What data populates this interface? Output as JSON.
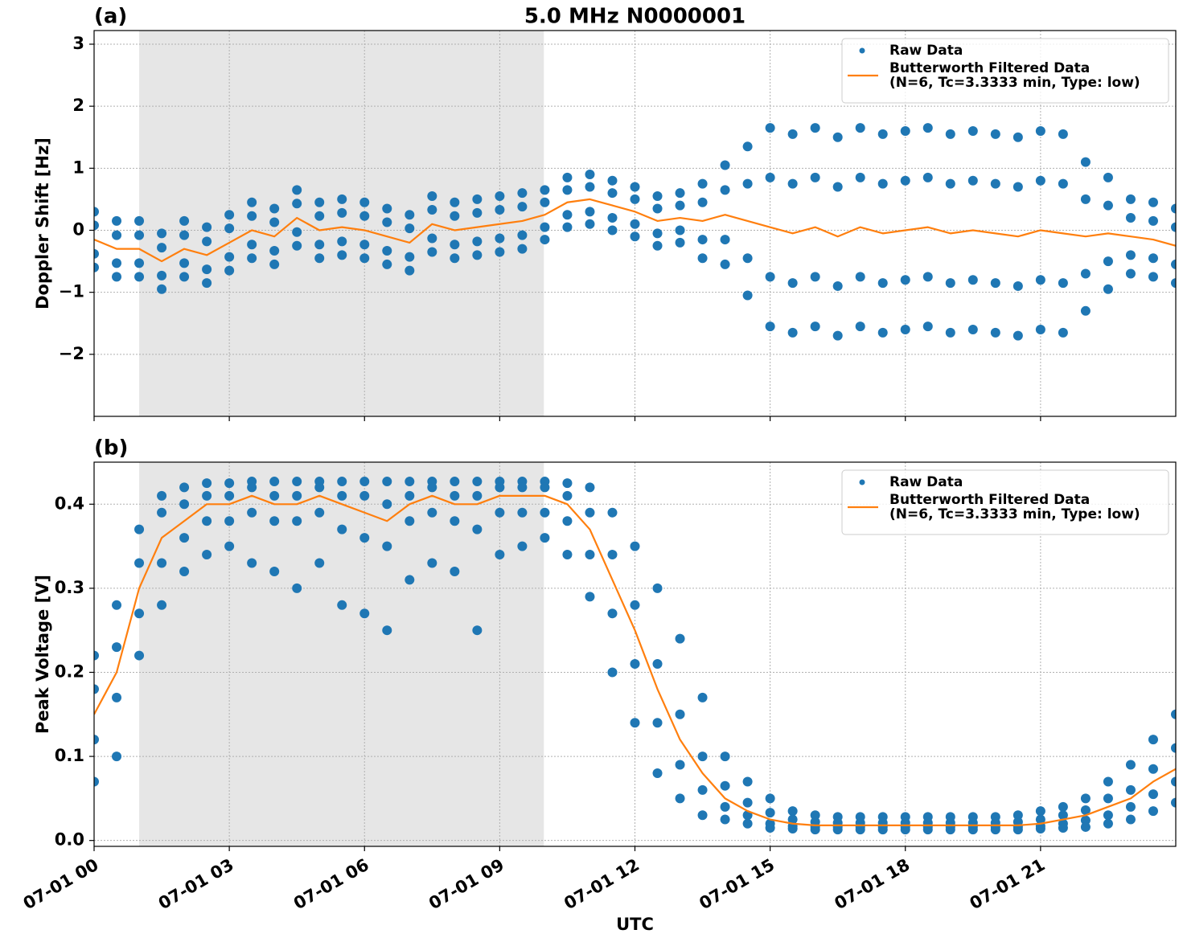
{
  "chart_data": [
    {
      "type": "scatter",
      "title": "5.0 MHz N0000001",
      "panel_label": "(a)",
      "ylabel": "Doppler Shift [Hz]",
      "xlim": [
        0,
        24
      ],
      "ylim": [
        -3,
        3.22
      ],
      "shaded_span": [
        1.0,
        9.98
      ],
      "grid": true,
      "legend": "upper right",
      "xticks": [
        0,
        3,
        6,
        9,
        12,
        15,
        18,
        21
      ],
      "yticks": [
        {
          "value": -2,
          "label": "−2"
        },
        {
          "value": -1,
          "label": "−1"
        },
        0,
        1,
        2,
        3
      ],
      "series": [
        {
          "name": "Raw Data",
          "type": "scatter",
          "color": "#1f77b4",
          "x": [
            0,
            0,
            0,
            0,
            0.5,
            0.5,
            0.5,
            0.5,
            1,
            1,
            1,
            1,
            1.5,
            1.5,
            1.5,
            1.5,
            2,
            2,
            2,
            2,
            2.5,
            2.5,
            2.5,
            2.5,
            3,
            3,
            3,
            3,
            3.5,
            3.5,
            3.5,
            3.5,
            4,
            4,
            4,
            4,
            4.5,
            4.5,
            4.5,
            4.5,
            5,
            5,
            5,
            5,
            5.5,
            5.5,
            5.5,
            5.5,
            6,
            6,
            6,
            6,
            6.5,
            6.5,
            6.5,
            6.5,
            7,
            7,
            7,
            7,
            7.5,
            7.5,
            7.5,
            7.5,
            8,
            8,
            8,
            8,
            8.5,
            8.5,
            8.5,
            8.5,
            9,
            9,
            9,
            9,
            9.5,
            9.5,
            9.5,
            9.5,
            10,
            10,
            10,
            10,
            10.5,
            10.5,
            10.5,
            10.5,
            11,
            11,
            11,
            11,
            11.5,
            11.5,
            11.5,
            11.5,
            12,
            12,
            12,
            12,
            12.5,
            12.5,
            12.5,
            12.5,
            13,
            13,
            13,
            13,
            13.5,
            13.5,
            13.5,
            13.5,
            14,
            14,
            14,
            14,
            14.5,
            14.5,
            14.5,
            14.5,
            15,
            15,
            15,
            15,
            15.5,
            15.5,
            15.5,
            15.5,
            16,
            16,
            16,
            16,
            16.5,
            16.5,
            16.5,
            16.5,
            17,
            17,
            17,
            17,
            17.5,
            17.5,
            17.5,
            17.5,
            18,
            18,
            18,
            18,
            18.5,
            18.5,
            18.5,
            18.5,
            19,
            19,
            19,
            19,
            19.5,
            19.5,
            19.5,
            19.5,
            20,
            20,
            20,
            20,
            20.5,
            20.5,
            20.5,
            20.5,
            21,
            21,
            21,
            21,
            21.5,
            21.5,
            21.5,
            21.5,
            22,
            22,
            22,
            22,
            22.5,
            22.5,
            22.5,
            22.5,
            23,
            23,
            23,
            23,
            23.5,
            23.5,
            23.5,
            23.5,
            24,
            24,
            24,
            24
          ],
          "values": [
            0.3,
            0.08,
            -0.38,
            -0.6,
            0.15,
            -0.08,
            -0.53,
            -0.75,
            0.15,
            -0.08,
            -0.53,
            -0.75,
            -0.05,
            -0.28,
            -0.73,
            -0.95,
            0.15,
            -0.08,
            -0.53,
            -0.75,
            0.05,
            -0.18,
            -0.63,
            -0.85,
            0.25,
            0.03,
            -0.43,
            -0.65,
            0.45,
            0.23,
            -0.23,
            -0.45,
            0.35,
            0.13,
            -0.33,
            -0.55,
            0.65,
            0.43,
            -0.03,
            -0.25,
            0.45,
            0.23,
            -0.23,
            -0.45,
            0.5,
            0.28,
            -0.18,
            -0.4,
            0.45,
            0.23,
            -0.23,
            -0.45,
            0.35,
            0.13,
            -0.33,
            -0.55,
            0.25,
            0.03,
            -0.43,
            -0.65,
            0.55,
            0.33,
            -0.13,
            -0.35,
            0.45,
            0.23,
            -0.23,
            -0.45,
            0.5,
            0.28,
            -0.18,
            -0.4,
            0.55,
            0.33,
            -0.13,
            -0.35,
            0.6,
            0.38,
            -0.08,
            -0.3,
            0.65,
            0.45,
            0.05,
            -0.15,
            0.85,
            0.65,
            0.25,
            0.05,
            0.9,
            0.7,
            0.3,
            0.1,
            0.8,
            0.6,
            0.2,
            0.0,
            0.7,
            0.5,
            0.1,
            -0.1,
            0.55,
            0.35,
            -0.05,
            -0.25,
            0.6,
            0.4,
            0.0,
            -0.2,
            0.75,
            0.45,
            -0.15,
            -0.45,
            1.05,
            0.65,
            -0.15,
            -0.55,
            1.35,
            0.75,
            -0.45,
            -1.05,
            1.65,
            0.85,
            -0.75,
            -1.55,
            1.55,
            0.75,
            -0.85,
            -1.65,
            1.65,
            0.85,
            -0.75,
            -1.55,
            1.5,
            0.7,
            -0.9,
            -1.7,
            1.65,
            0.85,
            -0.75,
            -1.55,
            1.55,
            0.75,
            -0.85,
            -1.65,
            1.6,
            0.8,
            -0.8,
            -1.6,
            1.65,
            0.85,
            -0.75,
            -1.55,
            1.55,
            0.75,
            -0.85,
            -1.65,
            1.6,
            0.8,
            -0.8,
            -1.6,
            1.55,
            0.75,
            -0.85,
            -1.65,
            1.5,
            0.7,
            -0.9,
            -1.7,
            1.6,
            0.8,
            -0.8,
            -1.6,
            1.55,
            0.75,
            -0.85,
            -1.65,
            1.1,
            0.5,
            -0.7,
            -1.3,
            0.85,
            0.4,
            -0.5,
            -0.95,
            0.5,
            0.2,
            -0.4,
            -0.7,
            0.45,
            0.15,
            -0.45,
            -0.75,
            0.35,
            0.05,
            -0.55,
            -0.85
          ]
        },
        {
          "name": [
            "Butterworth Filtered Data",
            "(N=6, Tc=3.3333 min, Type: low)"
          ],
          "type": "line",
          "color": "#ff7f0e",
          "x": [
            0,
            0.5,
            1,
            1.5,
            2,
            2.5,
            3,
            3.5,
            4,
            4.5,
            5,
            5.5,
            6,
            6.5,
            7,
            7.5,
            8,
            8.5,
            9,
            9.5,
            10,
            10.5,
            11,
            11.5,
            12,
            12.5,
            13,
            13.5,
            14,
            14.5,
            15,
            15.5,
            16,
            16.5,
            17,
            17.5,
            18,
            18.5,
            19,
            19.5,
            20,
            20.5,
            21,
            21.5,
            22,
            22.5,
            23,
            23.5,
            24
          ],
          "values": [
            -0.15,
            -0.3,
            -0.3,
            -0.5,
            -0.3,
            -0.4,
            -0.2,
            0.0,
            -0.1,
            0.2,
            0.0,
            0.05,
            0.0,
            -0.1,
            -0.2,
            0.1,
            0.0,
            0.05,
            0.1,
            0.15,
            0.25,
            0.45,
            0.5,
            0.4,
            0.3,
            0.15,
            0.2,
            0.15,
            0.25,
            0.15,
            0.05,
            -0.05,
            0.05,
            -0.1,
            0.05,
            -0.05,
            0.0,
            0.05,
            -0.05,
            0.0,
            -0.05,
            -0.1,
            0.0,
            -0.05,
            -0.1,
            -0.05,
            -0.1,
            -0.15,
            -0.25
          ]
        }
      ]
    },
    {
      "type": "scatter",
      "panel_label": "(b)",
      "ylabel": "Peak Voltage [V]",
      "xlabel": "UTC",
      "xlim": [
        0,
        24
      ],
      "ylim": [
        -0.007,
        0.45
      ],
      "shaded_span": [
        1.0,
        9.98
      ],
      "grid": true,
      "legend": "upper right",
      "xticks": [
        {
          "value": 0,
          "label": "07-01 00"
        },
        {
          "value": 3,
          "label": "07-01 03"
        },
        {
          "value": 6,
          "label": "07-01 06"
        },
        {
          "value": 9,
          "label": "07-01 09"
        },
        {
          "value": 12,
          "label": "07-01 12"
        },
        {
          "value": 15,
          "label": "07-01 15"
        },
        {
          "value": 18,
          "label": "07-01 18"
        },
        {
          "value": 21,
          "label": "07-01 21"
        }
      ],
      "yticks": [
        {
          "value": 0,
          "label": "0.0"
        },
        0.1,
        0.2,
        0.3,
        0.4
      ],
      "series": [
        {
          "name": "Raw Data",
          "type": "scatter",
          "color": "#1f77b4",
          "x": [
            0,
            0,
            0,
            0,
            0.5,
            0.5,
            0.5,
            0.5,
            1,
            1,
            1,
            1,
            1.5,
            1.5,
            1.5,
            1.5,
            2,
            2,
            2,
            2,
            2.5,
            2.5,
            2.5,
            2.5,
            3,
            3,
            3,
            3,
            3.5,
            3.5,
            3.5,
            3.5,
            4,
            4,
            4,
            4,
            4.5,
            4.5,
            4.5,
            4.5,
            5,
            5,
            5,
            5,
            5.5,
            5.5,
            5.5,
            5.5,
            6,
            6,
            6,
            6,
            6.5,
            6.5,
            6.5,
            6.5,
            7,
            7,
            7,
            7,
            7.5,
            7.5,
            7.5,
            7.5,
            8,
            8,
            8,
            8,
            8.5,
            8.5,
            8.5,
            8.5,
            9,
            9,
            9,
            9,
            9.5,
            9.5,
            9.5,
            9.5,
            10,
            10,
            10,
            10,
            10.5,
            10.5,
            10.5,
            10.5,
            11,
            11,
            11,
            11,
            11.5,
            11.5,
            11.5,
            11.5,
            12,
            12,
            12,
            12,
            12.5,
            12.5,
            12.5,
            12.5,
            13,
            13,
            13,
            13,
            13.5,
            13.5,
            13.5,
            13.5,
            14,
            14,
            14,
            14,
            14.5,
            14.5,
            14.5,
            14.5,
            15,
            15,
            15,
            15,
            15.5,
            15.5,
            15.5,
            15.5,
            16,
            16,
            16,
            16,
            16.5,
            16.5,
            16.5,
            16.5,
            17,
            17,
            17,
            17,
            17.5,
            17.5,
            17.5,
            17.5,
            18,
            18,
            18,
            18,
            18.5,
            18.5,
            18.5,
            18.5,
            19,
            19,
            19,
            19,
            19.5,
            19.5,
            19.5,
            19.5,
            20,
            20,
            20,
            20,
            20.5,
            20.5,
            20.5,
            20.5,
            21,
            21,
            21,
            21,
            21.5,
            21.5,
            21.5,
            21.5,
            22,
            22,
            22,
            22,
            22.5,
            22.5,
            22.5,
            22.5,
            23,
            23,
            23,
            23,
            23.5,
            23.5,
            23.5,
            23.5,
            24,
            24,
            24,
            24
          ],
          "values": [
            0.22,
            0.18,
            0.12,
            0.07,
            0.28,
            0.23,
            0.17,
            0.1,
            0.37,
            0.33,
            0.27,
            0.22,
            0.41,
            0.39,
            0.33,
            0.28,
            0.42,
            0.4,
            0.36,
            0.32,
            0.425,
            0.41,
            0.38,
            0.34,
            0.425,
            0.41,
            0.38,
            0.35,
            0.427,
            0.42,
            0.39,
            0.33,
            0.427,
            0.41,
            0.38,
            0.32,
            0.427,
            0.41,
            0.38,
            0.3,
            0.427,
            0.42,
            0.39,
            0.33,
            0.427,
            0.41,
            0.37,
            0.28,
            0.427,
            0.41,
            0.36,
            0.27,
            0.427,
            0.4,
            0.35,
            0.25,
            0.427,
            0.41,
            0.38,
            0.31,
            0.427,
            0.42,
            0.39,
            0.33,
            0.427,
            0.41,
            0.38,
            0.32,
            0.427,
            0.41,
            0.37,
            0.25,
            0.427,
            0.42,
            0.39,
            0.34,
            0.427,
            0.42,
            0.39,
            0.35,
            0.427,
            0.42,
            0.39,
            0.36,
            0.425,
            0.41,
            0.38,
            0.34,
            0.42,
            0.39,
            0.34,
            0.29,
            0.39,
            0.34,
            0.27,
            0.2,
            0.35,
            0.28,
            0.21,
            0.14,
            0.3,
            0.21,
            0.14,
            0.08,
            0.24,
            0.15,
            0.09,
            0.05,
            0.17,
            0.1,
            0.06,
            0.03,
            0.1,
            0.065,
            0.04,
            0.025,
            0.07,
            0.045,
            0.03,
            0.02,
            0.05,
            0.033,
            0.02,
            0.015,
            0.035,
            0.025,
            0.017,
            0.014,
            0.03,
            0.022,
            0.016,
            0.013,
            0.028,
            0.021,
            0.016,
            0.013,
            0.028,
            0.021,
            0.016,
            0.013,
            0.028,
            0.021,
            0.016,
            0.013,
            0.028,
            0.021,
            0.016,
            0.013,
            0.028,
            0.021,
            0.016,
            0.013,
            0.028,
            0.021,
            0.016,
            0.013,
            0.028,
            0.021,
            0.016,
            0.013,
            0.028,
            0.021,
            0.016,
            0.013,
            0.03,
            0.022,
            0.016,
            0.013,
            0.035,
            0.025,
            0.017,
            0.014,
            0.04,
            0.03,
            0.02,
            0.015,
            0.05,
            0.036,
            0.024,
            0.016,
            0.07,
            0.05,
            0.03,
            0.02,
            0.09,
            0.06,
            0.04,
            0.025,
            0.12,
            0.085,
            0.055,
            0.035,
            0.15,
            0.11,
            0.07,
            0.045
          ]
        },
        {
          "name": [
            "Butterworth Filtered Data",
            "(N=6, Tc=3.3333 min, Type: low)"
          ],
          "type": "line",
          "color": "#ff7f0e",
          "x": [
            0,
            0.5,
            1,
            1.5,
            2,
            2.5,
            3,
            3.5,
            4,
            4.5,
            5,
            5.5,
            6,
            6.5,
            7,
            7.5,
            8,
            8.5,
            9,
            9.5,
            10,
            10.5,
            11,
            11.5,
            12,
            12.5,
            13,
            13.5,
            14,
            14.5,
            15,
            15.5,
            16,
            16.5,
            17,
            17.5,
            18,
            18.5,
            19,
            19.5,
            20,
            20.5,
            21,
            21.5,
            22,
            22.5,
            23,
            23.5,
            24
          ],
          "values": [
            0.15,
            0.2,
            0.3,
            0.36,
            0.38,
            0.4,
            0.4,
            0.41,
            0.4,
            0.4,
            0.41,
            0.4,
            0.39,
            0.38,
            0.4,
            0.41,
            0.4,
            0.4,
            0.41,
            0.41,
            0.41,
            0.4,
            0.37,
            0.31,
            0.25,
            0.18,
            0.12,
            0.08,
            0.05,
            0.035,
            0.025,
            0.02,
            0.018,
            0.018,
            0.018,
            0.018,
            0.018,
            0.018,
            0.018,
            0.018,
            0.018,
            0.018,
            0.02,
            0.025,
            0.03,
            0.04,
            0.05,
            0.07,
            0.085
          ]
        }
      ]
    }
  ]
}
